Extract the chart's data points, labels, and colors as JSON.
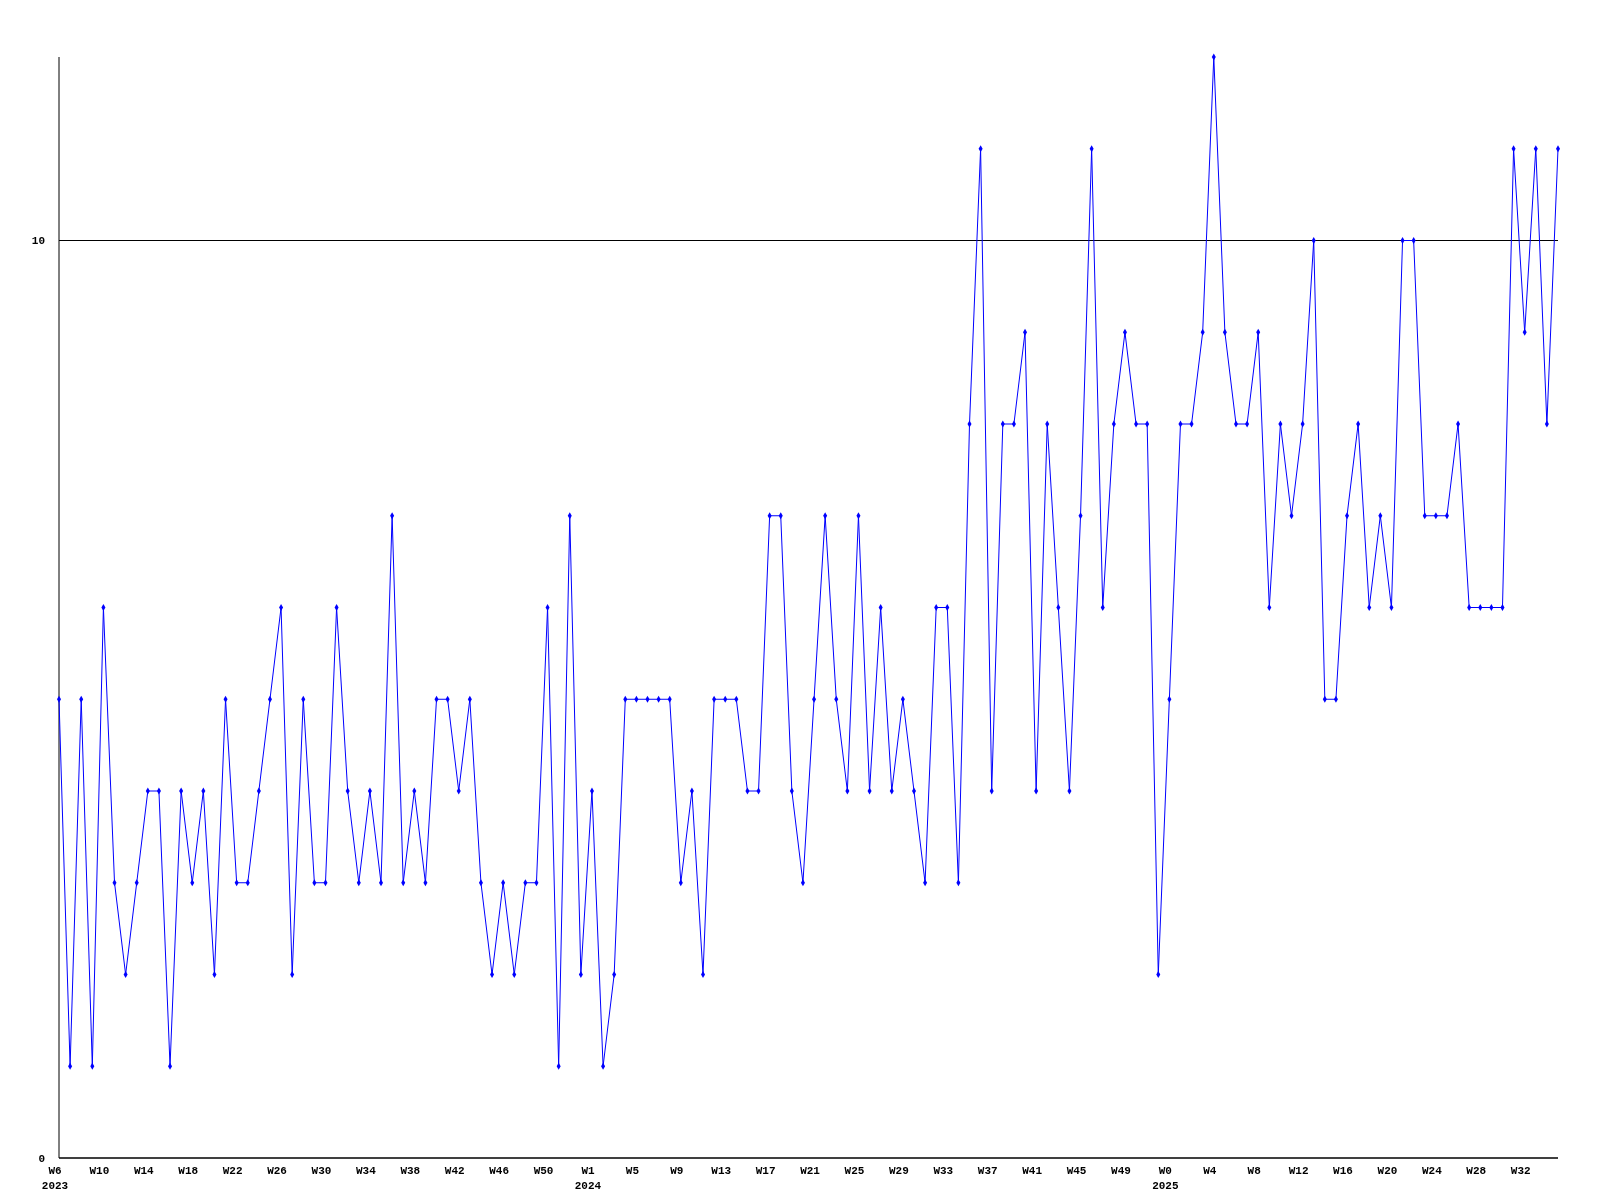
{
  "chart_data": {
    "type": "line",
    "categories": [
      "W6\n2023",
      null,
      null,
      null,
      "W10",
      null,
      null,
      null,
      "W14",
      null,
      null,
      null,
      "W18",
      null,
      null,
      null,
      "W22",
      null,
      null,
      null,
      "W26",
      null,
      null,
      null,
      "W30",
      null,
      null,
      null,
      "W34",
      null,
      null,
      null,
      "W38",
      null,
      null,
      null,
      "W42",
      null,
      null,
      null,
      "W46",
      null,
      null,
      null,
      "W50",
      null,
      null,
      null,
      "W1\n2024",
      null,
      null,
      null,
      "W5",
      null,
      null,
      null,
      "W9",
      null,
      null,
      null,
      "W13",
      null,
      null,
      null,
      "W17",
      null,
      null,
      null,
      "W21",
      null,
      null,
      null,
      "W25",
      null,
      null,
      null,
      "W29",
      null,
      null,
      null,
      "W33",
      null,
      null,
      null,
      "W37",
      null,
      null,
      null,
      "W41",
      null,
      null,
      null,
      "W45",
      null,
      null,
      null,
      "W49",
      null,
      null,
      null,
      "W0\n2025",
      null,
      null,
      null,
      "W4",
      null,
      null,
      null,
      "W8",
      null,
      null,
      null,
      "W12",
      null,
      null,
      null,
      "W16",
      null,
      null,
      null,
      "W20",
      null,
      null,
      null,
      "W24",
      null,
      null,
      null,
      "W28",
      null,
      null,
      null,
      "W32",
      null,
      null,
      null
    ],
    "series": [
      {
        "color": "#0000ff",
        "values": [
          5,
          1,
          5,
          1,
          6,
          3,
          2,
          3,
          4,
          4,
          1,
          4,
          3,
          4,
          2,
          5,
          3,
          3,
          4,
          5,
          6,
          2,
          5,
          3,
          3,
          6,
          4,
          3,
          4,
          3,
          7,
          3,
          4,
          3,
          5,
          5,
          4,
          5,
          3,
          2,
          3,
          2,
          3,
          3,
          6,
          1,
          7,
          2,
          4,
          1,
          2,
          5,
          5,
          5,
          5,
          5,
          3,
          4,
          2,
          5,
          5,
          5,
          4,
          4,
          7,
          7,
          4,
          3,
          5,
          7,
          5,
          4,
          7,
          4,
          6,
          4,
          5,
          4,
          3,
          6,
          6,
          3,
          8,
          11,
          4,
          8,
          8,
          9,
          4,
          8,
          6,
          4,
          7,
          11,
          6,
          8,
          9,
          8,
          8,
          2,
          5,
          8,
          8,
          9,
          12,
          9,
          8,
          8,
          9,
          6,
          8,
          7,
          8,
          10,
          5,
          5,
          7,
          8,
          6,
          7,
          6,
          10,
          10,
          7,
          7,
          7,
          8,
          6,
          6,
          6,
          6,
          11,
          9,
          11,
          8,
          11
        ]
      }
    ],
    "ylim": [
      0,
      12
    ],
    "yticks": [
      0,
      10
    ],
    "grid": "y",
    "marker": "diamond",
    "line_style": "solid"
  }
}
